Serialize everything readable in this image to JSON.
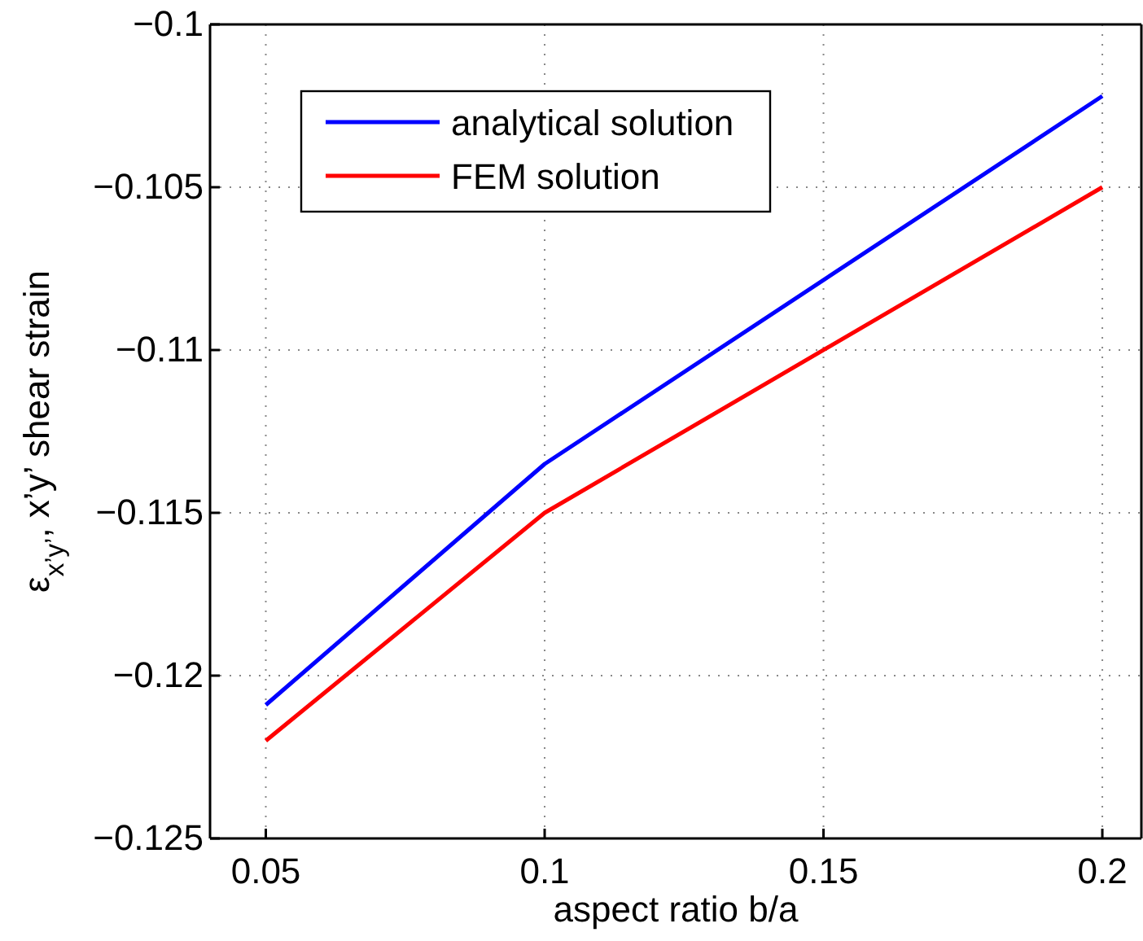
{
  "chart_data": {
    "type": "line",
    "xlabel": "aspect ratio b/a",
    "ylabel": "ε$_{x’y’}$, x’y’ shear strain",
    "x": [
      0.05,
      0.1,
      0.2
    ],
    "series": [
      {
        "name": "analytical solution",
        "color": "#0000ff",
        "values": [
          -0.1209,
          -0.1135,
          -0.1022
        ]
      },
      {
        "name": "FEM solution",
        "color": "#ff0000",
        "values": [
          -0.122,
          -0.115,
          -0.105
        ]
      }
    ],
    "xlim": [
      0.04,
      0.207
    ],
    "xticks": [
      0.05,
      0.1,
      0.15,
      0.2
    ],
    "ylim": [
      -0.125,
      -0.1
    ],
    "yticks": [
      {
        "value": -0.125,
        "label": "−0.125"
      },
      {
        "value": -0.12,
        "label": "−0.12"
      },
      {
        "value": -0.115,
        "label": "−0.115"
      },
      {
        "value": -0.11,
        "label": "−0.11"
      },
      {
        "value": -0.105,
        "label": "−0.105"
      },
      {
        "value": -0.1,
        "label": "−0.1"
      }
    ],
    "grid": true,
    "legend": "top left",
    "line_style": "solid"
  }
}
